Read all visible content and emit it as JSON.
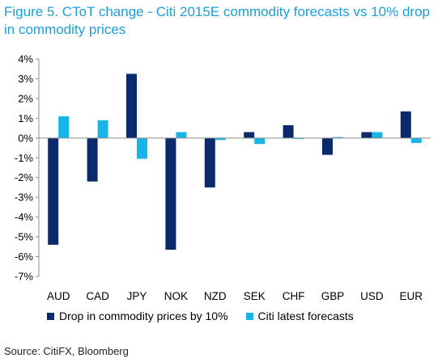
{
  "chart_data": {
    "type": "bar",
    "title": "Figure 5. CToT change - Citi 2015E commodity forecasts vs 10% drop in commodity prices",
    "categories": [
      "AUD",
      "CAD",
      "JPY",
      "NOK",
      "NZD",
      "SEK",
      "CHF",
      "GBP",
      "USD",
      "EUR"
    ],
    "series": [
      {
        "name": "Drop in commodity prices by 10%",
        "color": "#0b2a6b",
        "values": [
          -5.4,
          -2.2,
          3.25,
          -5.65,
          -2.5,
          0.3,
          0.65,
          -0.85,
          0.3,
          1.35
        ]
      },
      {
        "name": "Citi latest forecasts",
        "color": "#17b4e8",
        "values": [
          1.1,
          0.9,
          -1.05,
          0.3,
          -0.1,
          -0.3,
          -0.05,
          0.05,
          0.3,
          -0.25
        ]
      }
    ],
    "ylim": [
      -7,
      4
    ],
    "yticks": [
      4,
      3,
      2,
      1,
      0,
      -1,
      -2,
      -3,
      -4,
      -5,
      -6,
      -7
    ],
    "ytick_labels": [
      "4%",
      "3%",
      "2%",
      "1%",
      "0%",
      "-1%",
      "-2%",
      "-3%",
      "-4%",
      "-5%",
      "-6%",
      "-7%"
    ],
    "xlabel": "",
    "ylabel": "",
    "grid": false,
    "legend_position": "bottom"
  },
  "source": "Source: CitiFX, Bloomberg"
}
